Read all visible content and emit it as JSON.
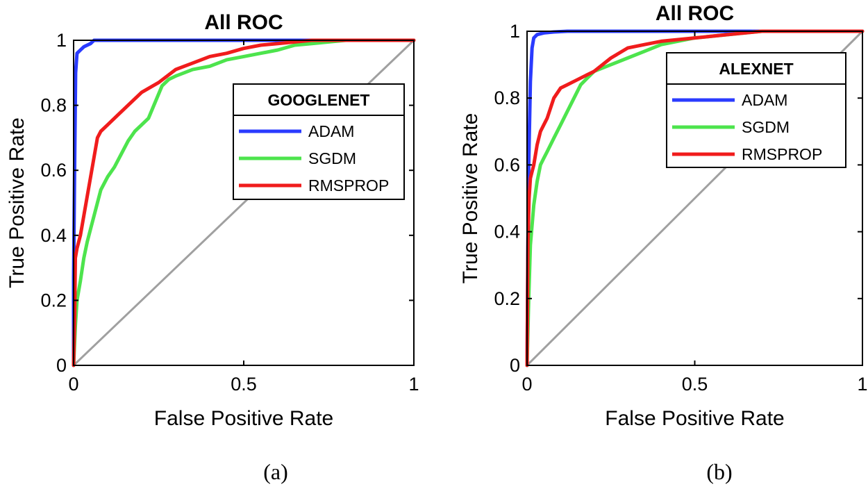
{
  "chart_data": [
    {
      "type": "line",
      "title": "All ROC",
      "xlabel": "False Positive Rate",
      "ylabel": "True Positive Rate",
      "xlim": [
        0,
        1
      ],
      "ylim": [
        0,
        1
      ],
      "xticks": [
        0,
        0.5,
        1
      ],
      "xtick_labels": [
        "0",
        "0.5",
        "1"
      ],
      "yticks": [
        0,
        0.2,
        0.4,
        0.6,
        0.8,
        1
      ],
      "ytick_labels": [
        "0",
        "0.2",
        "0.4",
        "0.6",
        "0.8",
        "1"
      ],
      "grid": false,
      "legend": {
        "title": "GOOGLENET",
        "position": "right"
      },
      "caption": "(a)",
      "diagonal": {
        "color": "#a0a0a0"
      },
      "series": [
        {
          "name": "ADAM",
          "color": "#2a3bff",
          "x": [
            0,
            0,
            0.003,
            0.006,
            0.01,
            0.015,
            0.02,
            0.03,
            0.04,
            0.05,
            0.06,
            0.08,
            0.1,
            0.2,
            0.4,
            0.6,
            0.8,
            1
          ],
          "y": [
            0,
            0.27,
            0.62,
            0.9,
            0.96,
            0.965,
            0.97,
            0.98,
            0.985,
            0.99,
            1,
            1,
            1,
            1,
            1,
            1,
            1,
            1
          ]
        },
        {
          "name": "SGDM",
          "color": "#4de44d",
          "x": [
            0,
            0.005,
            0.01,
            0.02,
            0.03,
            0.04,
            0.05,
            0.06,
            0.07,
            0.08,
            0.1,
            0.12,
            0.14,
            0.16,
            0.18,
            0.2,
            0.22,
            0.24,
            0.26,
            0.28,
            0.3,
            0.35,
            0.4,
            0.45,
            0.5,
            0.55,
            0.6,
            0.65,
            0.7,
            0.8,
            0.9,
            1
          ],
          "y": [
            0,
            0.12,
            0.2,
            0.26,
            0.33,
            0.38,
            0.42,
            0.46,
            0.5,
            0.54,
            0.58,
            0.61,
            0.65,
            0.69,
            0.72,
            0.74,
            0.76,
            0.81,
            0.86,
            0.88,
            0.89,
            0.91,
            0.92,
            0.94,
            0.95,
            0.96,
            0.97,
            0.985,
            0.99,
            1,
            1,
            1
          ]
        },
        {
          "name": "RMSPROP",
          "color": "#f01c1c",
          "x": [
            0,
            0.003,
            0.005,
            0.01,
            0.02,
            0.03,
            0.04,
            0.05,
            0.06,
            0.07,
            0.08,
            0.1,
            0.13,
            0.16,
            0.2,
            0.25,
            0.3,
            0.35,
            0.4,
            0.45,
            0.5,
            0.55,
            0.6,
            0.7,
            0.8,
            0.9,
            1
          ],
          "y": [
            0,
            0.15,
            0.33,
            0.36,
            0.4,
            0.46,
            0.52,
            0.58,
            0.64,
            0.7,
            0.72,
            0.74,
            0.77,
            0.8,
            0.84,
            0.87,
            0.91,
            0.93,
            0.95,
            0.96,
            0.975,
            0.985,
            0.99,
            1,
            1,
            1,
            1
          ]
        }
      ]
    },
    {
      "type": "line",
      "title": "All ROC",
      "xlabel": "False Positive Rate",
      "ylabel": "True Positive Rate",
      "xlim": [
        0,
        1
      ],
      "ylim": [
        0,
        1
      ],
      "xticks": [
        0,
        0.5,
        1
      ],
      "xtick_labels": [
        "0",
        "0.5",
        "1"
      ],
      "yticks": [
        0,
        0.2,
        0.4,
        0.6,
        0.8,
        1
      ],
      "ytick_labels": [
        "0",
        "0.2",
        "0.4",
        "0.6",
        "0.8",
        "1"
      ],
      "grid": false,
      "legend": {
        "title": "ALEXNET",
        "position": "right"
      },
      "caption": "(b)",
      "diagonal": {
        "color": "#a0a0a0"
      },
      "series": [
        {
          "name": "ADAM",
          "color": "#2a3bff",
          "x": [
            0,
            0.002,
            0.005,
            0.01,
            0.015,
            0.02,
            0.03,
            0.05,
            0.08,
            0.12,
            0.2,
            0.4,
            0.6,
            0.8,
            1
          ],
          "y": [
            0,
            0.3,
            0.6,
            0.85,
            0.95,
            0.98,
            0.99,
            0.995,
            0.998,
            1,
            1,
            1,
            1,
            1,
            1
          ]
        },
        {
          "name": "SGDM",
          "color": "#4de44d",
          "x": [
            0,
            0.005,
            0.01,
            0.02,
            0.03,
            0.04,
            0.05,
            0.06,
            0.08,
            0.1,
            0.12,
            0.14,
            0.16,
            0.18,
            0.2,
            0.25,
            0.3,
            0.35,
            0.4,
            0.5,
            0.6,
            0.7,
            0.8,
            1
          ],
          "y": [
            0,
            0.2,
            0.36,
            0.48,
            0.55,
            0.6,
            0.62,
            0.64,
            0.68,
            0.72,
            0.76,
            0.8,
            0.84,
            0.86,
            0.88,
            0.9,
            0.92,
            0.94,
            0.96,
            0.98,
            0.99,
            1,
            1,
            1
          ]
        },
        {
          "name": "RMSPROP",
          "color": "#f01c1c",
          "x": [
            0,
            0.003,
            0.006,
            0.01,
            0.02,
            0.03,
            0.04,
            0.05,
            0.06,
            0.07,
            0.08,
            0.1,
            0.12,
            0.14,
            0.16,
            0.18,
            0.2,
            0.25,
            0.3,
            0.35,
            0.4,
            0.5,
            0.6,
            0.7,
            1
          ],
          "y": [
            0,
            0.38,
            0.5,
            0.56,
            0.6,
            0.66,
            0.7,
            0.72,
            0.74,
            0.77,
            0.8,
            0.83,
            0.84,
            0.85,
            0.86,
            0.87,
            0.88,
            0.92,
            0.95,
            0.96,
            0.97,
            0.98,
            0.99,
            1,
            1
          ]
        }
      ]
    }
  ]
}
